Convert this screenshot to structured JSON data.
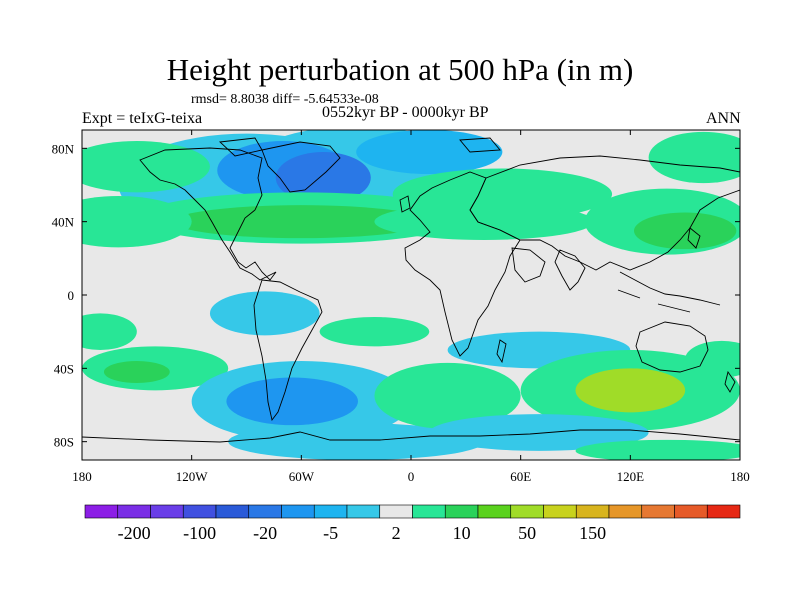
{
  "header": {
    "title": "Height perturbation at 500 hPa (in m)",
    "stats": "rmsd= 8.8038 diff= -5.64533e-08",
    "period": "0552kyr BP - 0000kyr BP",
    "expt": "Expt = teIxG-teixa",
    "season": "ANN"
  },
  "map": {
    "lon_range": [
      -180,
      180
    ],
    "lat_range": [
      -90,
      90
    ],
    "x_ticks": [
      {
        "lon": -180,
        "label": "180"
      },
      {
        "lon": -120,
        "label": "120W"
      },
      {
        "lon": -60,
        "label": "60W"
      },
      {
        "lon": 0,
        "label": "0"
      },
      {
        "lon": 60,
        "label": "60E"
      },
      {
        "lon": 120,
        "label": "120E"
      },
      {
        "lon": 180,
        "label": "180"
      }
    ],
    "y_ticks": [
      {
        "lat": 80,
        "label": "80N"
      },
      {
        "lat": 40,
        "label": "40N"
      },
      {
        "lat": 0,
        "label": "0"
      },
      {
        "lat": -40,
        "label": "40S"
      },
      {
        "lat": -80,
        "label": "80S"
      }
    ],
    "background_color": "#e8e8e8"
  },
  "colorbar": {
    "colors": [
      "#8c1ee6",
      "#7a2ee6",
      "#6a3ee8",
      "#4050e0",
      "#2a5ad8",
      "#2a78e6",
      "#1e96f0",
      "#1eb4f0",
      "#36c8e8",
      "#e8e8e8",
      "#28e696",
      "#2ad25a",
      "#5ad21e",
      "#a0dc28",
      "#c8d21e",
      "#d8b41e",
      "#e69628",
      "#e67832",
      "#e65a28",
      "#e62814"
    ],
    "labels": [
      {
        "index": 1,
        "text": "-200"
      },
      {
        "index": 3,
        "text": "-100"
      },
      {
        "index": 5,
        "text": "-20"
      },
      {
        "index": 7,
        "text": "-5"
      },
      {
        "index": 9,
        "text": "2"
      },
      {
        "index": 11,
        "text": "10"
      },
      {
        "index": 13,
        "text": "50"
      },
      {
        "index": 15,
        "text": "150"
      }
    ]
  },
  "field_regions": [
    {
      "lon": -90,
      "lat": 60,
      "rx": 70,
      "ry": 28,
      "level": 8
    },
    {
      "lon": -30,
      "lat": 70,
      "rx": 60,
      "ry": 22,
      "level": 8
    },
    {
      "lon": -70,
      "lat": 68,
      "rx": 36,
      "ry": 16,
      "level": 6
    },
    {
      "lon": -48,
      "lat": 64,
      "rx": 26,
      "ry": 14,
      "level": 5
    },
    {
      "lon": 10,
      "lat": 78,
      "rx": 40,
      "ry": 12,
      "level": 7
    },
    {
      "lon": -150,
      "lat": 70,
      "rx": 40,
      "ry": 14,
      "level": 10
    },
    {
      "lon": -60,
      "lat": 42,
      "rx": 90,
      "ry": 14,
      "level": 10
    },
    {
      "lon": -60,
      "lat": 40,
      "rx": 70,
      "ry": 9,
      "level": 11
    },
    {
      "lon": 50,
      "lat": 55,
      "rx": 60,
      "ry": 14,
      "level": 10
    },
    {
      "lon": 40,
      "lat": 40,
      "rx": 60,
      "ry": 10,
      "level": 10
    },
    {
      "lon": 140,
      "lat": 40,
      "rx": 45,
      "ry": 18,
      "level": 10
    },
    {
      "lon": 150,
      "lat": 35,
      "rx": 28,
      "ry": 10,
      "level": 11
    },
    {
      "lon": 160,
      "lat": 75,
      "rx": 30,
      "ry": 14,
      "level": 10
    },
    {
      "lon": -160,
      "lat": 40,
      "rx": 40,
      "ry": 14,
      "level": 10
    },
    {
      "lon": -140,
      "lat": -40,
      "rx": 40,
      "ry": 12,
      "level": 10
    },
    {
      "lon": -150,
      "lat": -42,
      "rx": 18,
      "ry": 6,
      "level": 11
    },
    {
      "lon": -170,
      "lat": -20,
      "rx": 20,
      "ry": 10,
      "level": 10
    },
    {
      "lon": -80,
      "lat": -10,
      "rx": 30,
      "ry": 12,
      "level": 8
    },
    {
      "lon": -60,
      "lat": -58,
      "rx": 60,
      "ry": 22,
      "level": 8
    },
    {
      "lon": -65,
      "lat": -58,
      "rx": 36,
      "ry": 13,
      "level": 6
    },
    {
      "lon": -30,
      "lat": -80,
      "rx": 70,
      "ry": 10,
      "level": 8
    },
    {
      "lon": 20,
      "lat": -55,
      "rx": 40,
      "ry": 18,
      "level": 10
    },
    {
      "lon": -20,
      "lat": -20,
      "rx": 30,
      "ry": 8,
      "level": 10
    },
    {
      "lon": 70,
      "lat": -30,
      "rx": 50,
      "ry": 10,
      "level": 8
    },
    {
      "lon": 120,
      "lat": -52,
      "rx": 60,
      "ry": 22,
      "level": 10
    },
    {
      "lon": 120,
      "lat": -52,
      "rx": 30,
      "ry": 12,
      "level": 13
    },
    {
      "lon": 170,
      "lat": -35,
      "rx": 20,
      "ry": 10,
      "level": 10
    },
    {
      "lon": 70,
      "lat": -75,
      "rx": 60,
      "ry": 10,
      "level": 8
    },
    {
      "lon": 140,
      "lat": -85,
      "rx": 50,
      "ry": 6,
      "level": 10
    }
  ]
}
